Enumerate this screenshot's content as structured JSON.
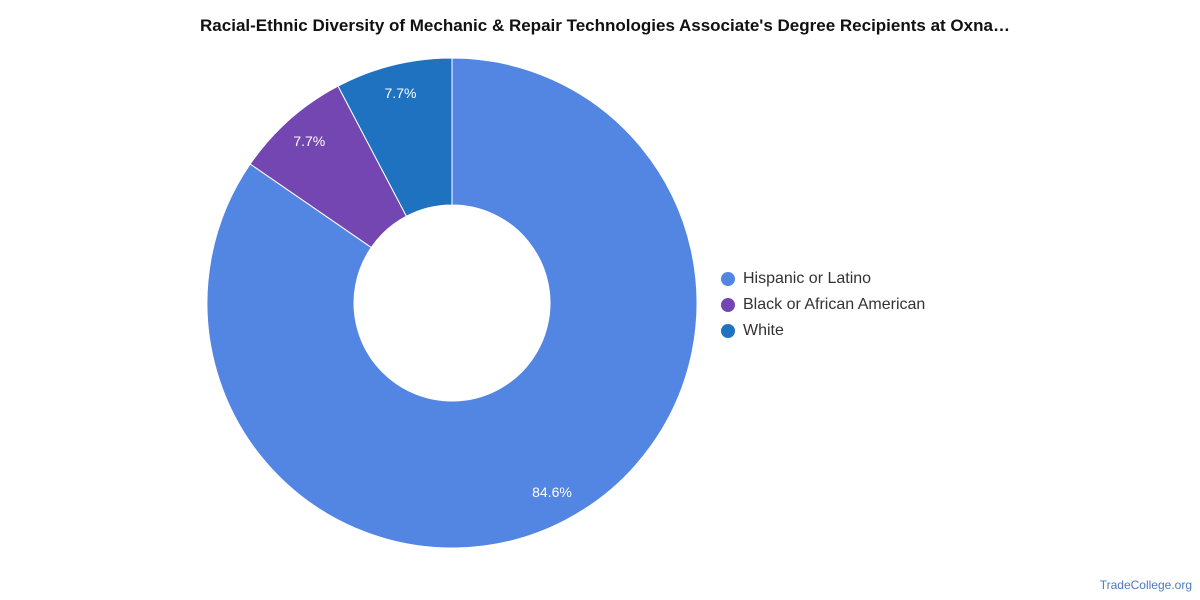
{
  "chart_data": {
    "type": "pie",
    "variant": "donut",
    "title": "Racial-Ethnic Diversity of Mechanic & Repair Technologies Associate's Degree Recipients at Oxna…",
    "slices": [
      {
        "name": "Hispanic or Latino",
        "value": 84.6,
        "label": "84.6%",
        "color": "#5385e2"
      },
      {
        "name": "Black or African American",
        "value": 7.7,
        "label": "7.7%",
        "color": "#7446b1"
      },
      {
        "name": "White",
        "value": 7.7,
        "label": "7.7%",
        "color": "#1f72bf"
      }
    ],
    "start": "12 o'clock",
    "direction": "clockwise",
    "legend_position": "right"
  },
  "footer": {
    "credit": "TradeCollege.org"
  }
}
